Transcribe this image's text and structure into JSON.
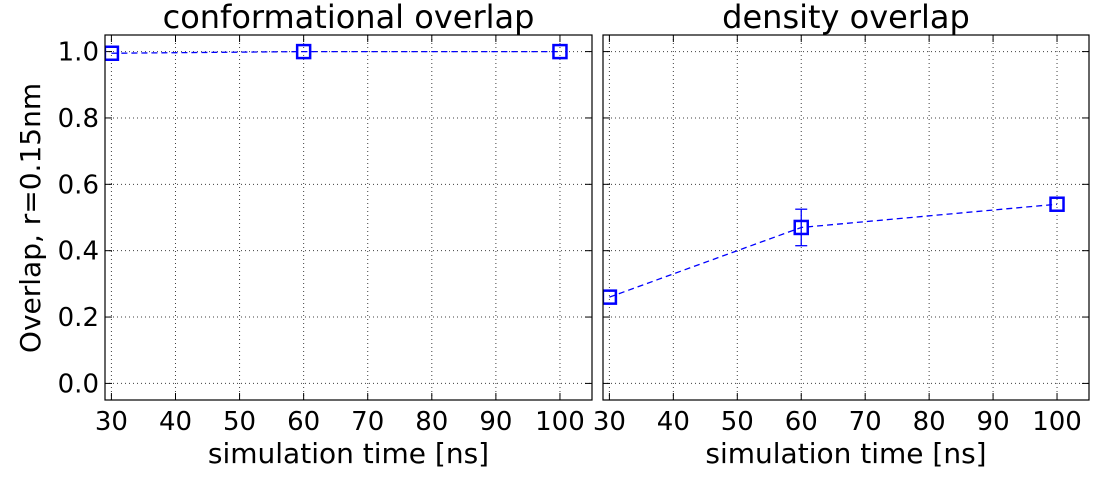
{
  "figure": {
    "ylabel": "Overlap, r=0.15nm"
  },
  "chart_data": [
    {
      "type": "line",
      "title": "conformational overlap",
      "xlabel": "simulation time [ns]",
      "ylabel": "Overlap, r=0.15nm",
      "xlim": [
        29,
        105
      ],
      "ylim": [
        -0.05,
        1.05
      ],
      "xticks": [
        30,
        40,
        50,
        60,
        70,
        80,
        90,
        100
      ],
      "yticks": [
        0.0,
        0.2,
        0.4,
        0.6,
        0.8,
        1.0
      ],
      "xtick_labels": [
        "30",
        "40",
        "50",
        "60",
        "70",
        "80",
        "90",
        "100"
      ],
      "ytick_labels": [
        "0.0",
        "0.2",
        "0.4",
        "0.6",
        "0.8",
        "1.0"
      ],
      "grid": true,
      "marker": "square",
      "line_style": "dashed",
      "color": "#0000ff",
      "series": [
        {
          "x": [
            30,
            60,
            100
          ],
          "y": [
            0.995,
            1.0,
            1.0
          ],
          "yerr": [
            0,
            0,
            0
          ]
        }
      ]
    },
    {
      "type": "line",
      "title": "density overlap",
      "xlabel": "simulation time [ns]",
      "ylabel": "",
      "xlim": [
        29,
        105
      ],
      "ylim": [
        -0.05,
        1.05
      ],
      "xticks": [
        30,
        40,
        50,
        60,
        70,
        80,
        90,
        100
      ],
      "yticks": [
        0.0,
        0.2,
        0.4,
        0.6,
        0.8,
        1.0
      ],
      "xtick_labels": [
        "30",
        "40",
        "50",
        "60",
        "70",
        "80",
        "90",
        "100"
      ],
      "ytick_labels": [],
      "grid": true,
      "marker": "square",
      "line_style": "dashed",
      "color": "#0000ff",
      "series": [
        {
          "x": [
            30,
            60,
            100
          ],
          "y": [
            0.26,
            0.47,
            0.54
          ],
          "yerr": [
            0,
            0.055,
            0
          ]
        }
      ]
    }
  ]
}
